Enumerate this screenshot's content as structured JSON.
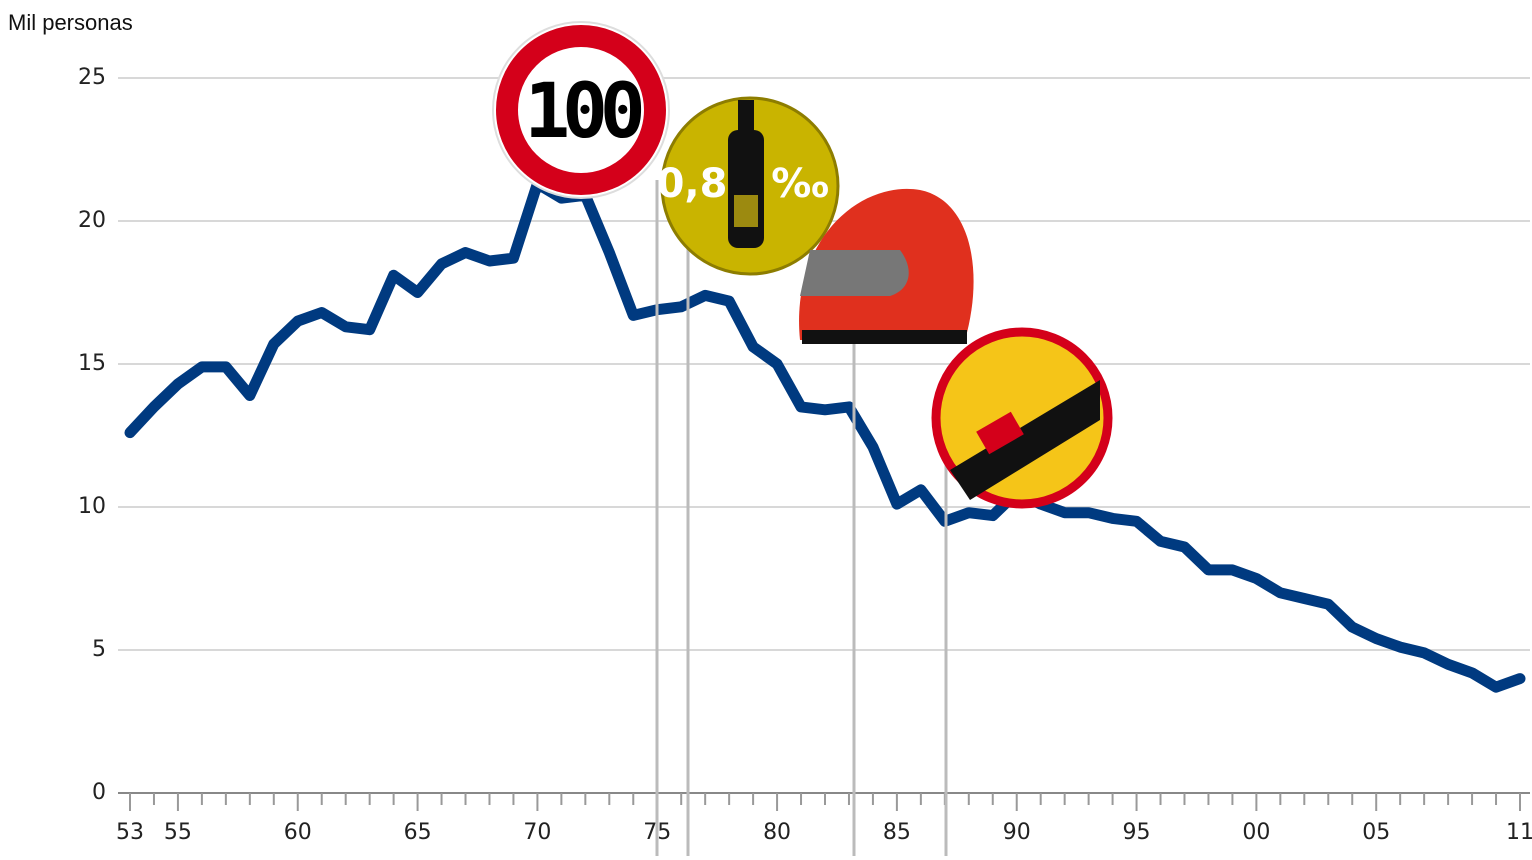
{
  "chart_data": {
    "type": "line",
    "y_label": "Mil personas",
    "categories": [
      "53",
      null,
      "55",
      null,
      null,
      null,
      null,
      "60",
      null,
      null,
      null,
      null,
      "65",
      null,
      null,
      null,
      null,
      "70",
      null,
      null,
      null,
      null,
      "75",
      null,
      null,
      null,
      null,
      "80",
      null,
      null,
      null,
      null,
      "85",
      null,
      null,
      null,
      null,
      "90",
      null,
      null,
      null,
      null,
      "95",
      null,
      null,
      null,
      null,
      "00",
      null,
      null,
      null,
      null,
      "05",
      null,
      null,
      null,
      null,
      null,
      "11"
    ],
    "series": [
      {
        "name": null,
        "color": "#003a80",
        "values": [
          12.6,
          13.5,
          14.3,
          14.9,
          14.9,
          13.9,
          15.7,
          16.5,
          16.8,
          16.3,
          16.2,
          18.1,
          17.5,
          18.5,
          18.9,
          18.6,
          18.7,
          21.3,
          20.8,
          20.9,
          18.9,
          16.7,
          16.9,
          17.0,
          17.4,
          17.2,
          15.6,
          15.0,
          13.5,
          13.4,
          13.5,
          12.1,
          10.1,
          10.6,
          9.5,
          9.8,
          9.7,
          10.5,
          10.1,
          9.8,
          9.8,
          9.6,
          9.5,
          8.8,
          8.6,
          7.8,
          7.8,
          7.5,
          7.0,
          6.8,
          6.6,
          5.8,
          5.4,
          5.1,
          4.9,
          4.5,
          4.2,
          3.7,
          4.0
        ]
      }
    ],
    "ylim": [
      0,
      25
    ],
    "yticks": [
      0,
      5,
      10,
      15,
      20,
      25
    ],
    "grid": true,
    "annotations": [
      "100",
      "0,8",
      "‰"
    ]
  }
}
